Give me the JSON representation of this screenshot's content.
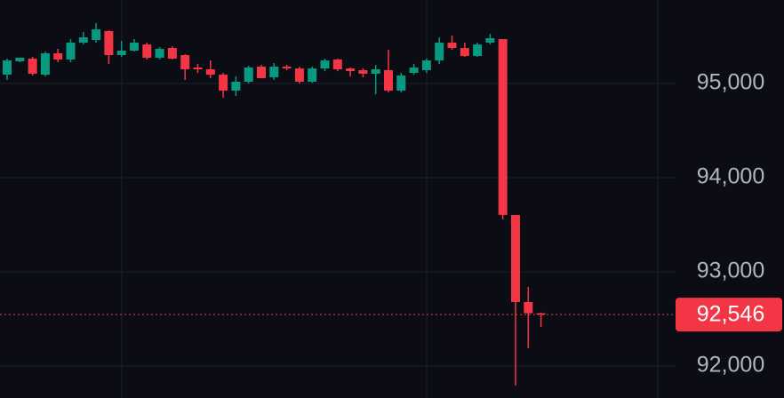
{
  "chart_data": {
    "type": "candlestick",
    "up_color": "#089981",
    "down_color": "#f23645",
    "grid": true,
    "ylim": [
      91660,
      95887
    ],
    "yticks": [
      {
        "value": 92000,
        "label": "92,000"
      },
      {
        "value": 93000,
        "label": "93,000"
      },
      {
        "value": 94000,
        "label": "94,000"
      },
      {
        "value": 95000,
        "label": "95,000"
      }
    ],
    "current_price": {
      "value": 92546,
      "label": "92,546"
    },
    "open": [
      95094,
      95236,
      95264,
      95094,
      95321,
      95255,
      95434,
      95462,
      95557,
      95302,
      95349,
      95415,
      95274,
      95377,
      95302,
      95170,
      95151,
      95094,
      94925,
      95019,
      95179,
      95066,
      95179,
      95160,
      95019,
      95160,
      95255,
      95160,
      95142,
      95104,
      95142,
      94925,
      95113,
      95142,
      95245,
      95434,
      95377,
      95292,
      95434,
      95472,
      93604,
      92679,
      92560
    ],
    "high": [
      95264,
      95274,
      95283,
      95340,
      95368,
      95472,
      95547,
      95641,
      95566,
      95453,
      95472,
      95434,
      95387,
      95396,
      95311,
      95208,
      95245,
      95113,
      95075,
      95189,
      95198,
      95217,
      95198,
      95179,
      95179,
      95264,
      95264,
      95170,
      95160,
      95198,
      95358,
      95113,
      95208,
      95264,
      95491,
      95509,
      95434,
      95434,
      95528,
      95472,
      93604,
      92840,
      92566
    ],
    "low": [
      95038,
      95226,
      95085,
      95075,
      95226,
      95226,
      95415,
      95434,
      95208,
      95283,
      95340,
      95255,
      95255,
      95255,
      95038,
      95113,
      95057,
      94849,
      94868,
      95000,
      95057,
      95038,
      95142,
      95000,
      95009,
      95132,
      95132,
      95075,
      95066,
      94887,
      94906,
      94906,
      95094,
      95113,
      95208,
      95358,
      95283,
      95283,
      95415,
      93557,
      91792,
      92189,
      92415
    ],
    "close": [
      95245,
      95274,
      95104,
      95321,
      95255,
      95434,
      95491,
      95575,
      95302,
      95349,
      95434,
      95274,
      95368,
      95264,
      95151,
      95151,
      95094,
      94925,
      95019,
      95170,
      95057,
      95179,
      95160,
      95019,
      95160,
      95245,
      95151,
      95132,
      95104,
      95151,
      94925,
      95085,
      95170,
      95245,
      95434,
      95377,
      95292,
      95415,
      95481,
      93604,
      92679,
      92560,
      92546
    ]
  }
}
